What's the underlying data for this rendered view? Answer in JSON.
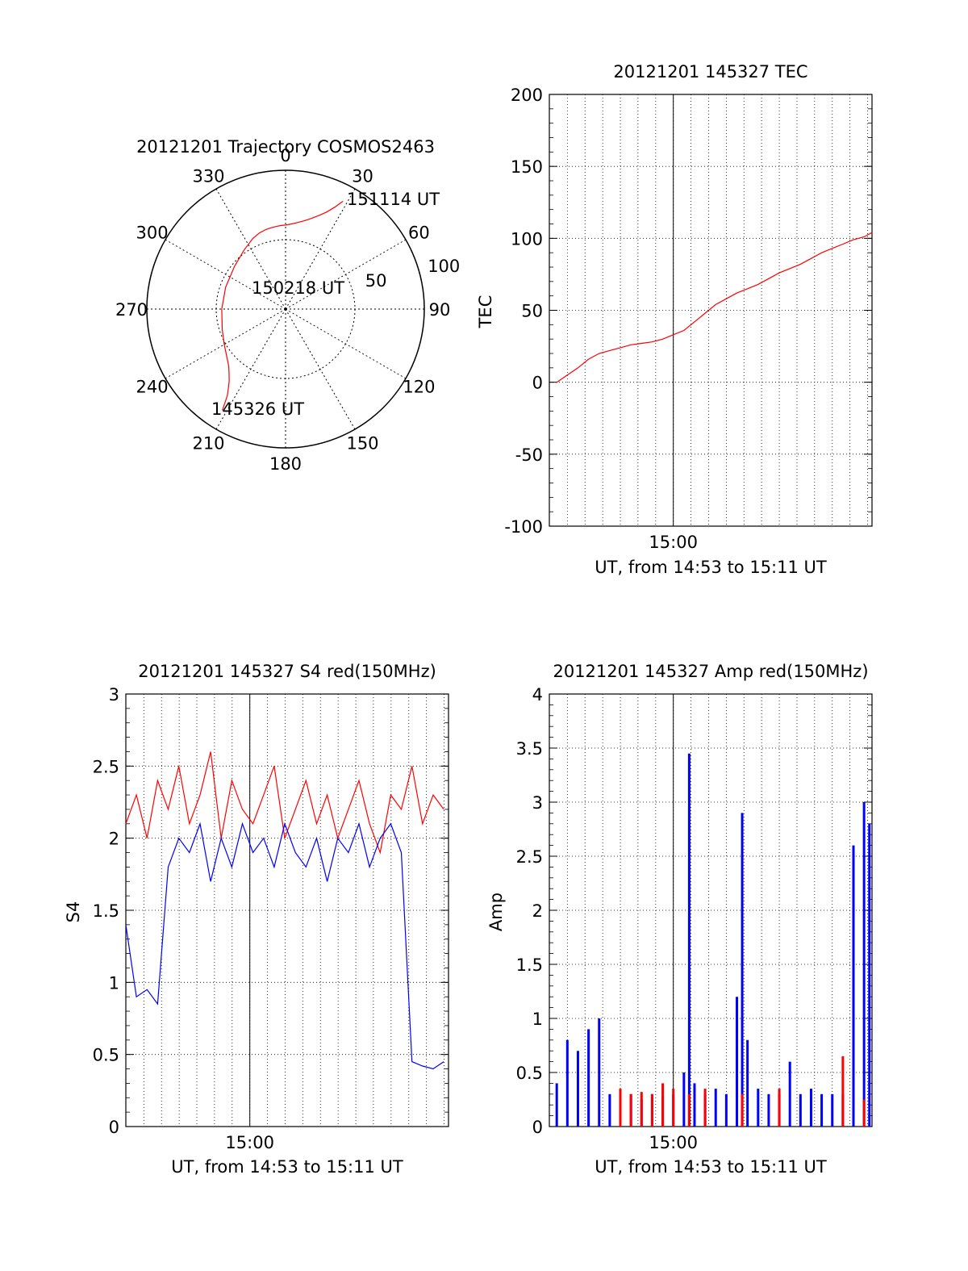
{
  "chart_data": [
    {
      "type": "polar",
      "title": "20121201 Trajectory COSMOS2463",
      "azimuth_labels": [
        "0",
        "30",
        "60",
        "90",
        "120",
        "150",
        "180",
        "210",
        "240",
        "270",
        "300",
        "330"
      ],
      "azimuth_values": [
        0,
        30,
        60,
        90,
        120,
        150,
        180,
        210,
        240,
        270,
        300,
        330
      ],
      "radial_labels": [
        "50",
        "100"
      ],
      "radial_values": [
        50,
        100
      ],
      "rlim": [
        0,
        100
      ],
      "grid": true,
      "annotations": {
        "start": "145326 UT",
        "mid": "150218 UT",
        "end": "151114 UT"
      },
      "series": [
        {
          "color": "#ff0000",
          "azimuth_deg": [
            212,
            213,
            214,
            216,
            218,
            221,
            225,
            230,
            240,
            252,
            270,
            290,
            310,
            325,
            335,
            341,
            346,
            350,
            354,
            357,
            0,
            4,
            8,
            12,
            16,
            20,
            23,
            26,
            28
          ],
          "zenith": [
            86,
            80,
            75,
            70,
            66,
            62,
            58,
            55,
            51,
            48,
            46,
            46,
            48,
            52,
            56,
            58,
            59,
            59.5,
            60,
            60.3,
            60.5,
            61.5,
            63,
            65,
            68,
            72,
            76,
            82,
            88
          ]
        }
      ]
    },
    {
      "type": "line",
      "title": "20121201 145327 TEC",
      "xlabel": "UT, from 14:53 to 15:11 UT",
      "ylabel": "TEC",
      "xlim": [
        14.883,
        15.1875
      ],
      "ylim": [
        -100,
        200
      ],
      "y_ticks": [
        -100,
        -50,
        0,
        50,
        100,
        150,
        200
      ],
      "x_tick_labels": [
        "15:00"
      ],
      "x_ticks": [
        15.0
      ],
      "grid": true,
      "series": [
        {
          "color": "#ff0000",
          "x": [
            14.89,
            14.9,
            14.91,
            14.92,
            14.93,
            14.94,
            14.95,
            14.96,
            14.97,
            14.98,
            14.99,
            15.0,
            15.01,
            15.02,
            15.03,
            15.04,
            15.05,
            15.06,
            15.07,
            15.08,
            15.09,
            15.1,
            15.11,
            15.12,
            15.13,
            15.14,
            15.15,
            15.16,
            15.17,
            15.18,
            15.1875
          ],
          "y": [
            0,
            5,
            10,
            16,
            20,
            22,
            24,
            26,
            27,
            28,
            30,
            33,
            36,
            42,
            48,
            54,
            58,
            62,
            65,
            68,
            72,
            76,
            79,
            82,
            86,
            90,
            93,
            96,
            99,
            101,
            104
          ]
        }
      ]
    },
    {
      "type": "line",
      "title": "20121201 145327 S4 red(150MHz)",
      "xlabel": "UT, from 14:53 to 15:11 UT",
      "ylabel": "S4",
      "xlim": [
        14.883,
        15.1875
      ],
      "ylim": [
        0,
        3
      ],
      "y_ticks": [
        0,
        0.5,
        1,
        1.5,
        2,
        2.5,
        3
      ],
      "y_tick_labels": [
        "0",
        "0.5",
        "1",
        "1.5",
        "2",
        "2.5",
        "3"
      ],
      "x_tick_labels": [
        "15:00"
      ],
      "x_ticks": [
        15.0
      ],
      "grid": true,
      "series": [
        {
          "color": "#ff0000",
          "x": [
            14.883,
            14.893,
            14.903,
            14.913,
            14.923,
            14.933,
            14.943,
            14.953,
            14.963,
            14.973,
            14.983,
            14.993,
            15.003,
            15.013,
            15.023,
            15.033,
            15.043,
            15.053,
            15.063,
            15.073,
            15.083,
            15.093,
            15.103,
            15.113,
            15.123,
            15.133,
            15.143,
            15.153,
            15.163,
            15.173,
            15.183
          ],
          "y": [
            2.1,
            2.3,
            2.0,
            2.4,
            2.2,
            2.5,
            2.1,
            2.3,
            2.6,
            2.0,
            2.4,
            2.2,
            2.1,
            2.3,
            2.5,
            2.0,
            2.2,
            2.4,
            2.1,
            2.3,
            2.0,
            2.2,
            2.4,
            2.1,
            1.9,
            2.3,
            2.2,
            2.5,
            2.1,
            2.3,
            2.2
          ]
        },
        {
          "color": "#0000ff",
          "x": [
            14.883,
            14.893,
            14.903,
            14.913,
            14.923,
            14.933,
            14.943,
            14.953,
            14.963,
            14.973,
            14.983,
            14.993,
            15.003,
            15.013,
            15.023,
            15.033,
            15.043,
            15.053,
            15.063,
            15.073,
            15.083,
            15.093,
            15.103,
            15.113,
            15.123,
            15.133,
            15.143,
            15.153,
            15.163,
            15.173,
            15.183
          ],
          "y": [
            1.4,
            0.9,
            0.95,
            0.85,
            1.8,
            2.0,
            1.9,
            2.1,
            1.7,
            2.0,
            1.8,
            2.1,
            1.9,
            2.0,
            1.8,
            2.1,
            1.9,
            1.8,
            2.0,
            1.7,
            2.0,
            1.9,
            2.1,
            1.8,
            2.0,
            2.1,
            1.9,
            0.45,
            0.42,
            0.4,
            0.45
          ]
        }
      ]
    },
    {
      "type": "bar",
      "title": "20121201 145327 Amp red(150MHz)",
      "xlabel": "UT, from 14:53 to 15:11 UT",
      "ylabel": "Amp",
      "xlim": [
        14.883,
        15.1875
      ],
      "ylim": [
        0,
        4
      ],
      "y_ticks": [
        0,
        0.5,
        1,
        1.5,
        2,
        2.5,
        3,
        3.5,
        4
      ],
      "y_tick_labels": [
        "0",
        "0.5",
        "1",
        "1.5",
        "2",
        "2.5",
        "3",
        "3.5",
        "4"
      ],
      "x_tick_labels": [
        "15:00"
      ],
      "x_ticks": [
        15.0
      ],
      "grid": true,
      "series": [
        {
          "color": "#0000ff",
          "x": [
            14.89,
            14.9,
            14.91,
            14.92,
            14.93,
            14.94,
            14.95,
            14.96,
            14.97,
            14.98,
            14.99,
            15.0,
            15.01,
            15.015,
            15.02,
            15.03,
            15.04,
            15.05,
            15.06,
            15.065,
            15.07,
            15.08,
            15.09,
            15.1,
            15.11,
            15.12,
            15.13,
            15.14,
            15.15,
            15.16,
            15.17,
            15.18,
            15.185
          ],
          "y": [
            0.4,
            0.8,
            0.7,
            0.9,
            1.0,
            0.3,
            0.25,
            0.3,
            0.25,
            0.3,
            0.28,
            0.3,
            0.5,
            3.45,
            0.4,
            0.3,
            0.35,
            0.3,
            1.2,
            2.9,
            0.8,
            0.35,
            0.3,
            0.3,
            0.6,
            0.3,
            0.35,
            0.3,
            0.3,
            0.3,
            2.6,
            3.0,
            2.8
          ]
        },
        {
          "color": "#ff0000",
          "x": [
            14.95,
            14.96,
            14.97,
            14.98,
            14.99,
            15.0,
            15.015,
            15.03,
            15.065,
            15.1,
            15.16,
            15.18
          ],
          "y": [
            0.35,
            0.3,
            0.32,
            0.3,
            0.4,
            0.35,
            0.3,
            0.35,
            0.3,
            0.35,
            0.65,
            0.25
          ]
        }
      ]
    }
  ]
}
